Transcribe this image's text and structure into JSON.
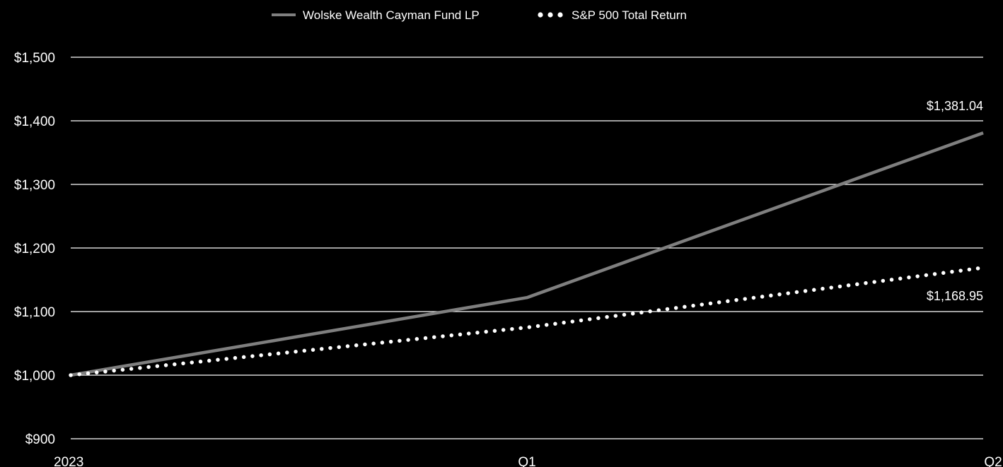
{
  "chart_data": {
    "type": "line",
    "categories": [
      "2023",
      "Q1",
      "Q2"
    ],
    "series": [
      {
        "name": "Wolske Wealth Cayman Fund LP",
        "style": "solid",
        "color": "#7f7f7f",
        "values": [
          1000,
          1122,
          1381.04
        ]
      },
      {
        "name": "S&P 500 Total Return",
        "style": "dotted",
        "color": "#ffffff",
        "values": [
          1000,
          1075,
          1168.95
        ]
      }
    ],
    "end_labels": [
      "$1,381.04",
      "$1,168.95"
    ],
    "y_ticks": [
      {
        "value": 1500,
        "label": "$1,500"
      },
      {
        "value": 1400,
        "label": "$1,400"
      },
      {
        "value": 1300,
        "label": "$1,300"
      },
      {
        "value": 1200,
        "label": "$1,200"
      },
      {
        "value": 1100,
        "label": "$1,100"
      },
      {
        "value": 1000,
        "label": "$1,000"
      },
      {
        "value": 900,
        "label": "$900"
      }
    ],
    "ylim": [
      900,
      1500
    ],
    "grid": true,
    "legend_position": "top-center",
    "background": "#000000",
    "grid_color": "#ffffff"
  }
}
